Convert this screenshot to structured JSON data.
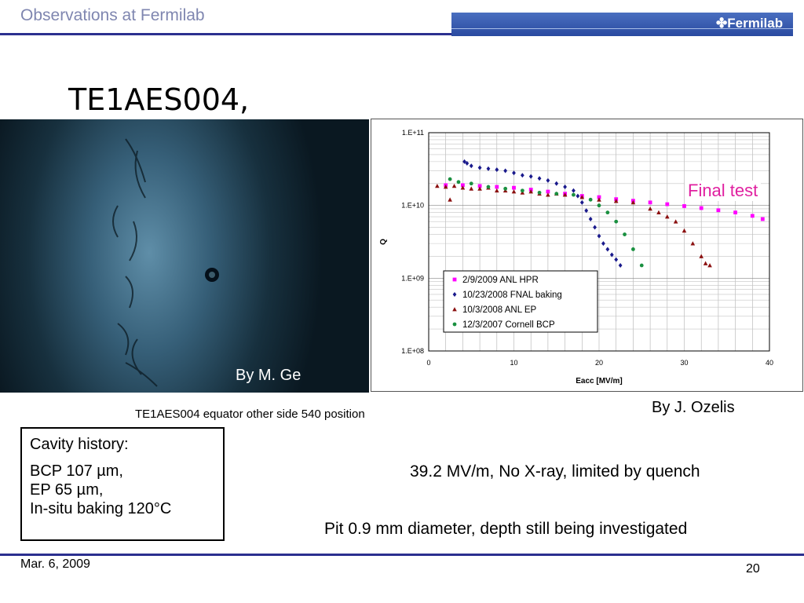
{
  "header": {
    "title": "Observations at Fermilab",
    "logo": "✤Fermilab",
    "logo_icon": "fermilab-logo-icon"
  },
  "slide": {
    "title": "TE1AES004,",
    "photo_credit": "By M. Ge",
    "photo_caption": "TE1AES004 equator other side 540 position",
    "chart_credit": "By J. Ozelis",
    "annotation": "Final test",
    "history": {
      "heading": "Cavity history:",
      "lines": [
        "BCP 107 µm,",
        "EP 65 µm,",
        "In-situ baking 120°C"
      ]
    },
    "note_gradient": "39.2 MV/m, No X-ray, limited by quench",
    "note_pit": "Pit 0.9 mm diameter, depth still being investigated"
  },
  "footer": {
    "date": "Mar. 6, 2009",
    "page": "20"
  },
  "chart_data": {
    "type": "scatter",
    "xlabel": "Eacc [MV/m]",
    "ylabel": "Q",
    "xlim": [
      0,
      40
    ],
    "ylim": [
      100000000,
      100000000000
    ],
    "log_y": true,
    "grid": true,
    "legend_position": "bottom-middle",
    "x_ticks": [
      "0",
      "10",
      "20",
      "30",
      "40"
    ],
    "y_ticks": [
      "1.E+08",
      "1.E+09",
      "1.E+10",
      "1.E+11"
    ],
    "series": [
      {
        "name": "2/9/2009 ANL HPR",
        "color": "#ff00ff",
        "marker": "square",
        "x": [
          2,
          4,
          6,
          8,
          10,
          12,
          14,
          16,
          18,
          20,
          22,
          24,
          26,
          28,
          30,
          32,
          34,
          36,
          38,
          39.2
        ],
        "y": [
          19000000000.0,
          19000000000.0,
          18500000000.0,
          18000000000.0,
          17500000000.0,
          16500000000.0,
          15500000000.0,
          14500000000.0,
          13500000000.0,
          13000000000.0,
          12200000000.0,
          11600000000.0,
          11000000000.0,
          10400000000.0,
          9800000000.0,
          9200000000.0,
          8600000000.0,
          8000000000.0,
          7200000000.0,
          6500000000.0
        ]
      },
      {
        "name": "10/23/2008 FNAL baking",
        "color": "#1a1a8c",
        "marker": "diamond",
        "x": [
          4.2,
          4.5,
          5,
          6,
          7,
          8,
          9,
          10,
          11,
          12,
          13,
          14,
          15,
          16,
          17,
          17.5,
          18,
          18.5,
          19,
          19.5,
          20,
          20.5,
          21,
          21.5,
          22,
          22.5
        ],
        "y": [
          40000000000.0,
          38000000000.0,
          35000000000.0,
          33000000000.0,
          32000000000.0,
          31000000000.0,
          30000000000.0,
          28000000000.0,
          26000000000.0,
          25000000000.0,
          23500000000.0,
          22000000000.0,
          20000000000.0,
          18000000000.0,
          16000000000.0,
          13500000000.0,
          11000000000.0,
          8500000000.0,
          6500000000.0,
          5000000000.0,
          3800000000.0,
          3000000000.0,
          2500000000.0,
          2100000000.0,
          1800000000.0,
          1500000000.0
        ]
      },
      {
        "name": "10/3/2008 ANL EP",
        "color": "#8b1010",
        "marker": "triangle",
        "x": [
          1,
          2,
          2.5,
          3,
          4,
          5,
          6,
          7,
          8,
          9,
          10,
          11,
          12,
          13,
          14,
          15,
          16,
          18,
          20,
          22,
          24,
          26,
          27,
          28,
          29,
          30,
          31,
          32,
          32.5,
          33
        ],
        "y": [
          18500000000.0,
          18000000000.0,
          12000000000.0,
          18500000000.0,
          17500000000.0,
          17000000000.0,
          17000000000.0,
          17500000000.0,
          16000000000.0,
          16000000000.0,
          15500000000.0,
          15000000000.0,
          15500000000.0,
          14500000000.0,
          14000000000.0,
          14500000000.0,
          14000000000.0,
          13000000000.0,
          12000000000.0,
          11500000000.0,
          11000000000.0,
          9000000000.0,
          8000000000.0,
          7000000000.0,
          6000000000.0,
          4500000000.0,
          3000000000.0,
          2000000000.0,
          1600000000.0,
          1500000000.0
        ]
      },
      {
        "name": "12/3/2007 Cornell BCP",
        "color": "#1a9040",
        "marker": "circle",
        "x": [
          2.5,
          3.5,
          5,
          7,
          9,
          11,
          13,
          15,
          17,
          19,
          20,
          21,
          22,
          23,
          24,
          25
        ],
        "y": [
          23000000000.0,
          21000000000.0,
          20000000000.0,
          18000000000.0,
          17000000000.0,
          16000000000.0,
          15000000000.0,
          14500000000.0,
          14000000000.0,
          12000000000.0,
          10000000000.0,
          8000000000.0,
          6000000000.0,
          4000000000.0,
          2500000000.0,
          1500000000.0
        ]
      }
    ]
  }
}
